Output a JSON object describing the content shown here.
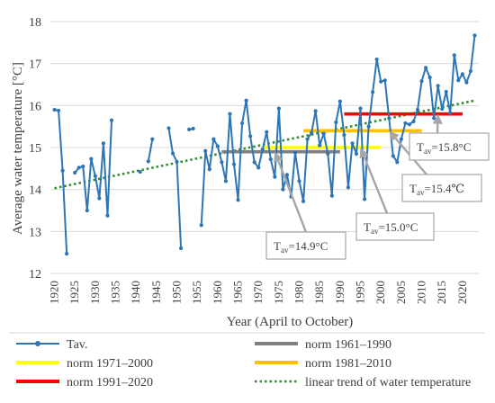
{
  "chart_data": {
    "type": "line",
    "xlabel": "Year (April to October)",
    "ylabel": "Average water temperature [°C]",
    "xlim": [
      1919,
      2024
    ],
    "ylim": [
      12,
      18
    ],
    "x_ticks": [
      1920,
      1925,
      1930,
      1935,
      1940,
      1945,
      1950,
      1955,
      1960,
      1965,
      1970,
      1975,
      1980,
      1985,
      1990,
      1995,
      2000,
      2005,
      2010,
      2015,
      2020
    ],
    "y_ticks": [
      12,
      13,
      14,
      15,
      16,
      17,
      18
    ],
    "grid": "horizontal",
    "legend_position": "bottom",
    "series": [
      {
        "name": "Tav.",
        "color": "#2E75B6",
        "segments": [
          [
            [
              1920,
              15.9
            ],
            [
              1921,
              15.88
            ],
            [
              1922,
              14.45
            ],
            [
              1923,
              12.47
            ]
          ],
          [
            [
              1925,
              14.4
            ],
            [
              1926,
              14.52
            ],
            [
              1927,
              14.55
            ],
            [
              1928,
              13.5
            ],
            [
              1929,
              14.73
            ],
            [
              1930,
              14.32
            ],
            [
              1931,
              13.79
            ],
            [
              1932,
              15.1
            ],
            [
              1933,
              13.38
            ],
            [
              1934,
              15.65
            ]
          ],
          [
            [
              1941,
              14.42
            ]
          ],
          [
            [
              1943,
              14.67
            ],
            [
              1944,
              15.2
            ]
          ],
          [
            [
              1948,
              15.46
            ],
            [
              1949,
              14.86
            ],
            [
              1950,
              14.66
            ],
            [
              1951,
              12.6
            ]
          ],
          [
            [
              1953,
              15.43
            ],
            [
              1954,
              15.45
            ]
          ],
          [
            [
              1956,
              13.15
            ],
            [
              1957,
              14.92
            ],
            [
              1958,
              14.48
            ],
            [
              1959,
              15.2
            ],
            [
              1960,
              15.03
            ],
            [
              1961,
              14.65
            ],
            [
              1962,
              14.2
            ],
            [
              1963,
              15.8
            ],
            [
              1964,
              14.6
            ],
            [
              1965,
              13.75
            ],
            [
              1966,
              15.58
            ],
            [
              1967,
              16.12
            ],
            [
              1968,
              15.27
            ],
            [
              1969,
              14.65
            ],
            [
              1970,
              14.52
            ],
            [
              1971,
              14.95
            ],
            [
              1972,
              15.37
            ],
            [
              1973,
              14.72
            ],
            [
              1974,
              14.3
            ],
            [
              1975,
              15.93
            ],
            [
              1976,
              14.0
            ],
            [
              1977,
              14.35
            ],
            [
              1978,
              13.83
            ],
            [
              1979,
              14.88
            ],
            [
              1980,
              14.2
            ],
            [
              1981,
              13.72
            ],
            [
              1982,
              15.2
            ],
            [
              1983,
              15.35
            ],
            [
              1984,
              15.87
            ],
            [
              1985,
              15.05
            ],
            [
              1986,
              15.33
            ],
            [
              1987,
              14.85
            ],
            [
              1988,
              13.85
            ],
            [
              1989,
              15.6
            ],
            [
              1990,
              16.1
            ],
            [
              1991,
              15.3
            ],
            [
              1992,
              14.05
            ],
            [
              1993,
              15.1
            ],
            [
              1994,
              14.85
            ],
            [
              1995,
              15.93
            ],
            [
              1996,
              13.77
            ],
            [
              1997,
              15.5
            ],
            [
              1998,
              16.32
            ],
            [
              1999,
              17.1
            ],
            [
              2000,
              16.57
            ],
            [
              2001,
              16.6
            ],
            [
              2002,
              15.7
            ],
            [
              2003,
              14.8
            ],
            [
              2004,
              14.65
            ],
            [
              2005,
              15.2
            ],
            [
              2006,
              15.58
            ],
            [
              2007,
              15.55
            ],
            [
              2008,
              15.62
            ],
            [
              2009,
              15.9
            ],
            [
              2010,
              16.58
            ],
            [
              2011,
              16.9
            ],
            [
              2012,
              16.67
            ],
            [
              2013,
              15.7
            ],
            [
              2014,
              16.47
            ],
            [
              2015,
              15.92
            ],
            [
              2016,
              16.33
            ],
            [
              2017,
              15.82
            ],
            [
              2018,
              17.2
            ],
            [
              2019,
              16.6
            ],
            [
              2020,
              16.75
            ],
            [
              2021,
              16.55
            ],
            [
              2022,
              16.82
            ],
            [
              2023,
              17.67
            ]
          ]
        ]
      },
      {
        "name": "norm 1961–1990",
        "color": "#808080",
        "from": 1961,
        "to": 1990,
        "value": 14.9
      },
      {
        "name": "norm 1971–2000",
        "color": "#FFFF00",
        "from": 1971,
        "to": 2000,
        "value": 15.0
      },
      {
        "name": "norm 1981–2010",
        "color": "#FFC000",
        "from": 1981,
        "to": 2010,
        "value": 15.4
      },
      {
        "name": "norm 1991–2020",
        "color": "#FF0000",
        "from": 1991,
        "to": 2020,
        "value": 15.8
      },
      {
        "name": "linear trend of water temperature",
        "color": "#2E8B2E",
        "from": 1920,
        "to": 2023,
        "start": 14.03,
        "end": 16.12
      }
    ],
    "annotations": [
      {
        "base": "T",
        "sub": "av",
        "text": "=14.9°C",
        "point": [
          1974,
          14.9
        ]
      },
      {
        "base": "T",
        "sub": "av",
        "text": "=15.0°C",
        "point": [
          1995,
          15.0
        ]
      },
      {
        "base": "T",
        "sub": "av",
        "text": "=15.4℃",
        "point": [
          2002,
          15.4
        ]
      },
      {
        "base": "T",
        "sub": "av",
        "text": "=15.8°C",
        "point": [
          2014,
          15.8
        ]
      }
    ]
  }
}
